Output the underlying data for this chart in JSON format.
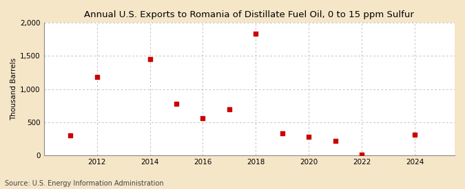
{
  "title": "Annual U.S. Exports to Romania of Distillate Fuel Oil, 0 to 15 ppm Sulfur",
  "ylabel": "Thousand Barrels",
  "source": "Source: U.S. Energy Information Administration",
  "years": [
    2011,
    2012,
    2014,
    2015,
    2016,
    2017,
    2018,
    2019,
    2020,
    2021,
    2022,
    2024
  ],
  "values": [
    300,
    1180,
    1450,
    780,
    560,
    690,
    1840,
    330,
    275,
    215,
    5,
    310
  ],
  "marker_color": "#cc0000",
  "marker_size": 5,
  "figure_bg": "#f5e6c8",
  "plot_bg": "#ffffff",
  "grid_color": "#aaaaaa",
  "xlim": [
    2010.0,
    2025.5
  ],
  "ylim": [
    0,
    2000
  ],
  "yticks": [
    0,
    500,
    1000,
    1500,
    2000
  ],
  "xticks": [
    2012,
    2014,
    2016,
    2018,
    2020,
    2022,
    2024
  ],
  "title_fontsize": 9.5,
  "label_fontsize": 7.5,
  "tick_fontsize": 7.5,
  "source_fontsize": 7
}
